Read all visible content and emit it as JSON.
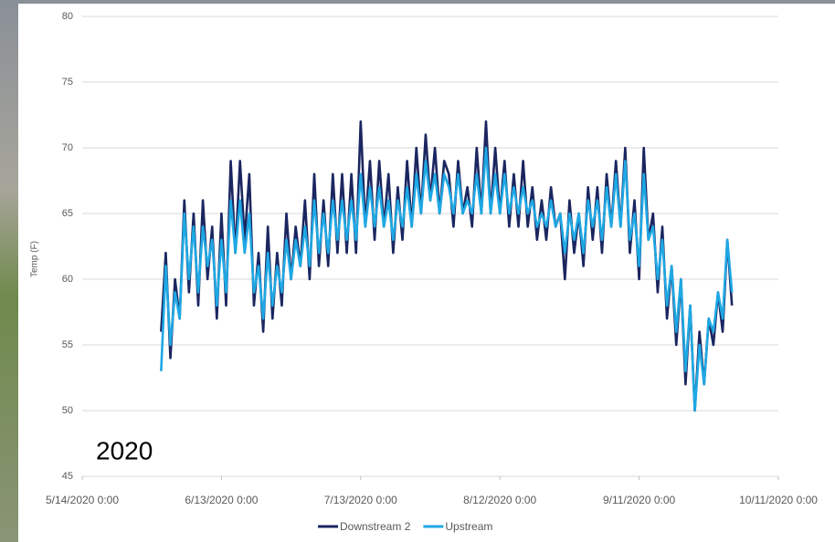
{
  "chart_data": {
    "type": "line",
    "y_label": "Temp (F)",
    "annotation": "2020",
    "xlim": [
      "5/14/2020 0:00",
      "10/11/2020 0:00"
    ],
    "xticks": [
      "5/14/2020 0:00",
      "6/13/2020 0:00",
      "7/13/2020 0:00",
      "8/12/2020 0:00",
      "9/11/2020 0:00",
      "10/11/2020 0:00"
    ],
    "ylim": [
      45,
      80
    ],
    "yticks": [
      45,
      50,
      55,
      60,
      65,
      70,
      75,
      80
    ],
    "grid": true,
    "legend": "bottom",
    "x": [
      "5/31/2020 0:00",
      "6/1/2020 0:00",
      "6/2/2020 0:00",
      "6/3/2020 0:00",
      "6/4/2020 0:00",
      "6/5/2020 0:00",
      "6/6/2020 0:00",
      "6/7/2020 0:00",
      "6/8/2020 0:00",
      "6/9/2020 0:00",
      "6/10/2020 0:00",
      "6/11/2020 0:00",
      "6/12/2020 0:00",
      "6/13/2020 0:00",
      "6/14/2020 0:00",
      "6/15/2020 0:00",
      "6/16/2020 0:00",
      "6/17/2020 0:00",
      "6/18/2020 0:00",
      "6/19/2020 0:00",
      "6/20/2020 0:00",
      "6/21/2020 0:00",
      "6/22/2020 0:00",
      "6/23/2020 0:00",
      "6/24/2020 0:00",
      "6/25/2020 0:00",
      "6/26/2020 0:00",
      "6/27/2020 0:00",
      "6/28/2020 0:00",
      "6/29/2020 0:00",
      "6/30/2020 0:00",
      "7/1/2020 0:00",
      "7/2/2020 0:00",
      "7/3/2020 0:00",
      "7/4/2020 0:00",
      "7/5/2020 0:00",
      "7/6/2020 0:00",
      "7/7/2020 0:00",
      "7/8/2020 0:00",
      "7/9/2020 0:00",
      "7/10/2020 0:00",
      "7/11/2020 0:00",
      "7/12/2020 0:00",
      "7/13/2020 0:00",
      "7/14/2020 0:00",
      "7/15/2020 0:00",
      "7/16/2020 0:00",
      "7/17/2020 0:00",
      "7/18/2020 0:00",
      "7/19/2020 0:00",
      "7/20/2020 0:00",
      "7/21/2020 0:00",
      "7/22/2020 0:00",
      "7/23/2020 0:00",
      "7/24/2020 0:00",
      "7/25/2020 0:00",
      "7/26/2020 0:00",
      "7/27/2020 0:00",
      "7/28/2020 0:00",
      "7/29/2020 0:00",
      "7/30/2020 0:00",
      "7/31/2020 0:00",
      "8/1/2020 0:00",
      "8/2/2020 0:00",
      "8/3/2020 0:00",
      "8/4/2020 0:00",
      "8/5/2020 0:00",
      "8/6/2020 0:00",
      "8/7/2020 0:00",
      "8/8/2020 0:00",
      "8/9/2020 0:00",
      "8/10/2020 0:00",
      "8/11/2020 0:00",
      "8/12/2020 0:00",
      "8/13/2020 0:00",
      "8/14/2020 0:00",
      "8/15/2020 0:00",
      "8/16/2020 0:00",
      "8/17/2020 0:00",
      "8/18/2020 0:00",
      "8/19/2020 0:00",
      "8/20/2020 0:00",
      "8/21/2020 0:00",
      "8/22/2020 0:00",
      "8/23/2020 0:00",
      "8/24/2020 0:00",
      "8/25/2020 0:00",
      "8/26/2020 0:00",
      "8/27/2020 0:00",
      "8/28/2020 0:00",
      "8/29/2020 0:00",
      "8/30/2020 0:00",
      "8/31/2020 0:00",
      "9/1/2020 0:00",
      "9/2/2020 0:00",
      "9/3/2020 0:00",
      "9/4/2020 0:00",
      "9/5/2020 0:00",
      "9/6/2020 0:00",
      "9/7/2020 0:00",
      "9/8/2020 0:00",
      "9/9/2020 0:00",
      "9/10/2020 0:00",
      "9/11/2020 0:00",
      "9/12/2020 0:00",
      "9/13/2020 0:00",
      "9/14/2020 0:00",
      "9/15/2020 0:00",
      "9/16/2020 0:00",
      "9/17/2020 0:00",
      "9/18/2020 0:00",
      "9/19/2020 0:00",
      "9/20/2020 0:00",
      "9/21/2020 0:00",
      "9/22/2020 0:00",
      "9/23/2020 0:00",
      "9/24/2020 0:00",
      "9/25/2020 0:00",
      "9/26/2020 0:00",
      "9/27/2020 0:00",
      "9/28/2020 0:00",
      "9/29/2020 0:00",
      "9/30/2020 0:00",
      "10/1/2020 0:00"
    ],
    "series": [
      {
        "name": "Downstream 2",
        "color": "#1b2660",
        "values": [
          56,
          62,
          54,
          60,
          57,
          66,
          59,
          65,
          58,
          66,
          60,
          64,
          57,
          65,
          58,
          69,
          62,
          69,
          63,
          68,
          58,
          62,
          56,
          64,
          57,
          62,
          58,
          65,
          60,
          64,
          61,
          66,
          60,
          68,
          61,
          66,
          61,
          68,
          62,
          68,
          62,
          68,
          62,
          72,
          64,
          69,
          63,
          69,
          64,
          68,
          62,
          67,
          63,
          69,
          64,
          70,
          65,
          71,
          66,
          70,
          65,
          69,
          68,
          64,
          69,
          65,
          67,
          64,
          70,
          65,
          72,
          65,
          70,
          65,
          69,
          64,
          68,
          64,
          69,
          64,
          67,
          63,
          66,
          63,
          67,
          64,
          65,
          60,
          66,
          62,
          65,
          61,
          67,
          63,
          67,
          62,
          68,
          64,
          69,
          64,
          70,
          62,
          66,
          60,
          70,
          63,
          65,
          59,
          64,
          57,
          61,
          55,
          60,
          52,
          58,
          50,
          56,
          52,
          57,
          55,
          59,
          56,
          63,
          58
        ]
      },
      {
        "name": "Upstream",
        "color": "#1ea8e4",
        "values": [
          53,
          61,
          55,
          59,
          57,
          65,
          60,
          64,
          59,
          64,
          61,
          63,
          58,
          63,
          59,
          66,
          62,
          66,
          62,
          65,
          59,
          61,
          57,
          62,
          58,
          61,
          59,
          63,
          60,
          63,
          61,
          64,
          61,
          66,
          62,
          65,
          62,
          66,
          63,
          66,
          63,
          66,
          63,
          68,
          64,
          67,
          64,
          67,
          64,
          66,
          63,
          66,
          64,
          67,
          64,
          68,
          65,
          69,
          66,
          68,
          65,
          68,
          67,
          65,
          68,
          65,
          66,
          65,
          68,
          65,
          70,
          65,
          68,
          65,
          68,
          65,
          67,
          65,
          67,
          65,
          66,
          64,
          65,
          64,
          66,
          64,
          65,
          62,
          65,
          63,
          65,
          62,
          66,
          64,
          66,
          63,
          67,
          64,
          68,
          64,
          69,
          63,
          65,
          61,
          68,
          63,
          64,
          60,
          63,
          58,
          61,
          56,
          60,
          53,
          58,
          50,
          55,
          52,
          57,
          56,
          59,
          57,
          63,
          59
        ]
      }
    ]
  }
}
